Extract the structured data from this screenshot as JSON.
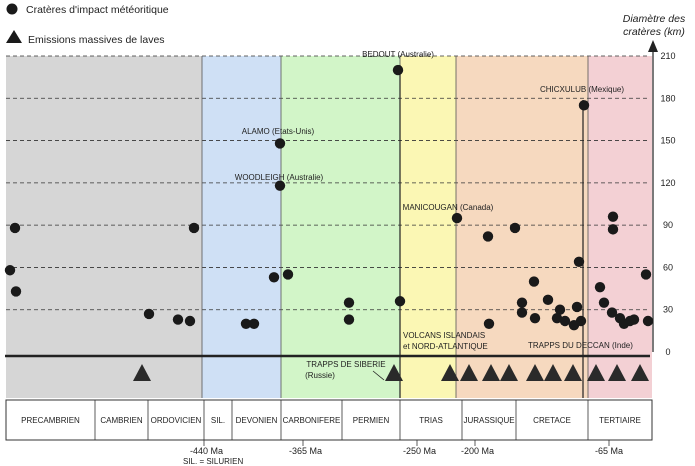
{
  "legend": {
    "craters": "Cratères d'impact météoritique",
    "volcanism": "Emissions massives de laves"
  },
  "y_axis": {
    "title_line1": "Diamètre des",
    "title_line2": "cratères (km)",
    "ticks": [
      "0",
      "30",
      "60",
      "90",
      "120",
      "150",
      "180",
      "210"
    ]
  },
  "periods": [
    {
      "name": "PRECAMBRIEN",
      "color": "#d6d6d6"
    },
    {
      "name": "CAMBRIEN",
      "color": "#d6d6d6"
    },
    {
      "name": "ORDOVICIEN",
      "color": "#d6d6d6"
    },
    {
      "name": "SIL.",
      "color": "#cfe0f5"
    },
    {
      "name": "DEVONIEN",
      "color": "#cfe0f5"
    },
    {
      "name": "CARBONIFERE",
      "color": "#d2f5c8"
    },
    {
      "name": "PERMIEN",
      "color": "#d2f5c8"
    },
    {
      "name": "TRIAS",
      "color": "#fbf7b4"
    },
    {
      "name": "JURASSIQUE",
      "color": "#f6d9bf"
    },
    {
      "name": "CRETACE",
      "color": "#f6d9bf"
    },
    {
      "name": "TERTIAIRE",
      "color": "#f3d0d4"
    }
  ],
  "time_labels": [
    "-440 Ma",
    "-365 Ma",
    "-250 Ma",
    "-200 Ma",
    "-65 Ma"
  ],
  "footnote": "SIL. = SILURIEN",
  "annotations": {
    "bedout": "BEDOUT (Australie)",
    "chicxulub": "CHICXULUB (Mexique)",
    "alamo": "ALAMO (Etats-Unis)",
    "woodleigh": "WOODLEIGH (Australie)",
    "manicougan": "MANICOUGAN (Canada)",
    "siberie1": "TRAPPS DE SIBERIE",
    "siberie2": "(Russie)",
    "volcans1": "VOLCANS ISLANDAIS",
    "volcans2": "et NORD-ATLANTIQUE",
    "deccan": "TRAPPS DU DECCAN (Inde)"
  },
  "chart_data": {
    "type": "scatter",
    "ylabel": "Diamètre des cratères (km)",
    "ylim": [
      0,
      210
    ],
    "grid": true,
    "craters_km": [
      {
        "period": "PRECAMBRIEN",
        "diameters": [
          88,
          58,
          43
        ]
      },
      {
        "period": "ORDOVICIEN",
        "diameters": [
          88,
          27,
          23,
          22
        ]
      },
      {
        "period": "DEVONIEN",
        "diameters": [
          53,
          20,
          20
        ]
      },
      {
        "period": "DEVONIEN/CARBONIFERE",
        "name": "ALAMO",
        "diameters": [
          148
        ]
      },
      {
        "period": "DEVONIEN/CARBONIFERE",
        "name": "WOODLEIGH",
        "diameters": [
          118
        ]
      },
      {
        "period": "CARBONIFERE",
        "diameters": [
          55
        ]
      },
      {
        "period": "PERMIEN",
        "diameters": [
          35,
          23
        ]
      },
      {
        "period": "PERMIEN",
        "name": "BEDOUT",
        "diameters": [
          200
        ]
      },
      {
        "period": "PERMIEN/TRIAS",
        "diameters": [
          36
        ]
      },
      {
        "period": "TRIAS/JURASSIQUE",
        "name": "MANICOUGAN",
        "diameters": [
          95
        ]
      },
      {
        "period": "JURASSIQUE",
        "diameters": [
          82,
          88,
          20,
          35,
          24,
          28,
          50
        ]
      },
      {
        "period": "CRETACE",
        "diameters": [
          37,
          30,
          24,
          22,
          19,
          22,
          32,
          64
        ]
      },
      {
        "period": "CRETACE/TERTIAIRE",
        "name": "CHICXULUB",
        "diameters": [
          175
        ]
      },
      {
        "period": "TERTIAIRE",
        "diameters": [
          96,
          87,
          46,
          55,
          35,
          28,
          24,
          20,
          22,
          23,
          22
        ]
      }
    ],
    "volcanism_events": [
      "ORDOVICIEN",
      "PERMIEN/TRIAS (Trapps de Sibérie)",
      "TRIAS/JURASSIQUE (Volcans islandais et nord-atlantique)",
      "JURASSIQUE",
      "JURASSIQUE",
      "JURASSIQUE",
      "CRETACE",
      "CRETACE",
      "CRETACE",
      "CRETACE",
      "CRETACE/TERTIAIRE (Trapps du Deccan)",
      "TERTIAIRE",
      "TERTIAIRE",
      "TERTIAIRE"
    ]
  }
}
